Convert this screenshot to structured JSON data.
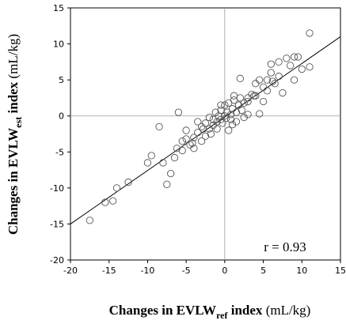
{
  "chart_data": {
    "type": "scatter",
    "xlabel": {
      "main": "Changes in EVLW",
      "sub": "ref",
      "rest": " index ",
      "unit": "(mL/kg)"
    },
    "ylabel": {
      "main": "Changes in EVLW",
      "sub": "est",
      "rest": " index ",
      "unit": "(mL/kg)"
    },
    "xlim": [
      -20,
      15
    ],
    "ylim": [
      -20,
      15
    ],
    "xticks": [
      -20,
      -15,
      -10,
      -5,
      0,
      5,
      10,
      15
    ],
    "yticks": [
      -20,
      -15,
      -10,
      -5,
      0,
      5,
      10,
      15
    ],
    "annotation": "r = 0.93",
    "reference_lines": {
      "x": 0,
      "y": 0
    },
    "regression_line": {
      "x": [
        -20,
        15
      ],
      "y": [
        -15,
        11
      ]
    },
    "points": [
      [
        -17.5,
        -14.5
      ],
      [
        -15.5,
        -12
      ],
      [
        -14.5,
        -11.8
      ],
      [
        -14,
        -10
      ],
      [
        -12.5,
        -9.2
      ],
      [
        -10,
        -6.5
      ],
      [
        -9.5,
        -5.5
      ],
      [
        -8.5,
        -1.5
      ],
      [
        -8,
        -6.5
      ],
      [
        -7.5,
        -9.5
      ],
      [
        -7,
        -8
      ],
      [
        -6.5,
        -5.8
      ],
      [
        -6,
        0.5
      ],
      [
        -5.5,
        -3.5
      ],
      [
        -5.5,
        -4.8
      ],
      [
        -5,
        -2
      ],
      [
        -5,
        -3.2
      ],
      [
        -4.5,
        -4
      ],
      [
        -4,
        -3
      ],
      [
        -4,
        -4.5
      ],
      [
        -3.5,
        -0.8
      ],
      [
        -3.5,
        -2.3
      ],
      [
        -3,
        -1.5
      ],
      [
        -3,
        -3.5
      ],
      [
        -2.5,
        -1
      ],
      [
        -2.5,
        -2.8
      ],
      [
        -2,
        -0.2
      ],
      [
        -2,
        -1.8
      ],
      [
        -1.8,
        -2.5
      ],
      [
        -1.5,
        -0.5
      ],
      [
        -1.5,
        -1.3
      ],
      [
        -1.2,
        0.5
      ],
      [
        -1,
        -0.8
      ],
      [
        -1,
        -1.8
      ],
      [
        -0.8,
        0
      ],
      [
        -0.5,
        0.8
      ],
      [
        -0.5,
        -0.5
      ],
      [
        -0.3,
        -1
      ],
      [
        0,
        0
      ],
      [
        0,
        1.5
      ],
      [
        0.2,
        -0.3
      ],
      [
        0.3,
        0.5
      ],
      [
        0.5,
        1.8
      ],
      [
        0.5,
        -2
      ],
      [
        0.8,
        0.2
      ],
      [
        1,
        1
      ],
      [
        1,
        -1.2
      ],
      [
        1.2,
        2.2
      ],
      [
        1.5,
        0.5
      ],
      [
        1.5,
        -0.8
      ],
      [
        1.8,
        1.5
      ],
      [
        2,
        5.2
      ],
      [
        2,
        2.5
      ],
      [
        2.2,
        0.8
      ],
      [
        2.5,
        1.8
      ],
      [
        3,
        2
      ],
      [
        3,
        0.2
      ],
      [
        3.5,
        3
      ],
      [
        4,
        4.5
      ],
      [
        4,
        2.8
      ],
      [
        4.5,
        5
      ],
      [
        4.5,
        0.3
      ],
      [
        5,
        4
      ],
      [
        5,
        2
      ],
      [
        5.5,
        5
      ],
      [
        5.5,
        3.5
      ],
      [
        6,
        6
      ],
      [
        6,
        7.2
      ],
      [
        6.5,
        4.5
      ],
      [
        7,
        7.5
      ],
      [
        7,
        5.5
      ],
      [
        7.5,
        3.2
      ],
      [
        8,
        8
      ],
      [
        8.5,
        7
      ],
      [
        9,
        8.2
      ],
      [
        9,
        5
      ],
      [
        9.5,
        8.2
      ],
      [
        10,
        6.5
      ],
      [
        11,
        11.5
      ],
      [
        11,
        6.8
      ],
      [
        3,
        2.5
      ],
      [
        -0.5,
        1.5
      ],
      [
        0.8,
        -0.5
      ],
      [
        -2.8,
        -1.8
      ],
      [
        2.5,
        -0.2
      ],
      [
        3.8,
        2.8
      ],
      [
        -4.2,
        -3.8
      ],
      [
        6.2,
        4.8
      ],
      [
        -6.2,
        -4.5
      ],
      [
        1.2,
        2.8
      ]
    ]
  }
}
